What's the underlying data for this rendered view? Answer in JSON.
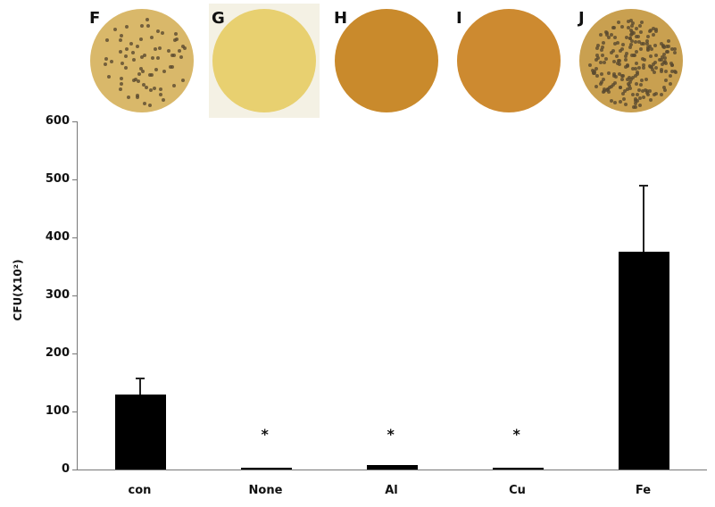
{
  "plates": [
    {
      "label": "F",
      "color": "#d9b86a",
      "colonies": "moderate"
    },
    {
      "label": "G",
      "color": "#e8d070",
      "colonies": "none"
    },
    {
      "label": "H",
      "color": "#c98a2c",
      "colonies": "none"
    },
    {
      "label": "I",
      "color": "#cd8a30",
      "colonies": "none"
    },
    {
      "label": "J",
      "color": "#c9a050",
      "colonies": "dense"
    }
  ],
  "chart_data": {
    "type": "bar",
    "title": "",
    "xlabel": "",
    "ylabel": "CFU(X10²)",
    "ylim": [
      0,
      600
    ],
    "yticks": [
      0,
      100,
      200,
      300,
      400,
      500,
      600
    ],
    "categories": [
      "con",
      "None",
      "Al",
      "Cu",
      "Fe"
    ],
    "values": [
      129,
      2,
      7,
      2,
      375
    ],
    "error_upper": [
      158,
      null,
      null,
      null,
      491
    ],
    "annotations": [
      {
        "category": "None",
        "text": "*"
      },
      {
        "category": "Al",
        "text": "*"
      },
      {
        "category": "Cu",
        "text": "*"
      }
    ],
    "bar_color": "#000000",
    "grid": false,
    "legend": null
  }
}
